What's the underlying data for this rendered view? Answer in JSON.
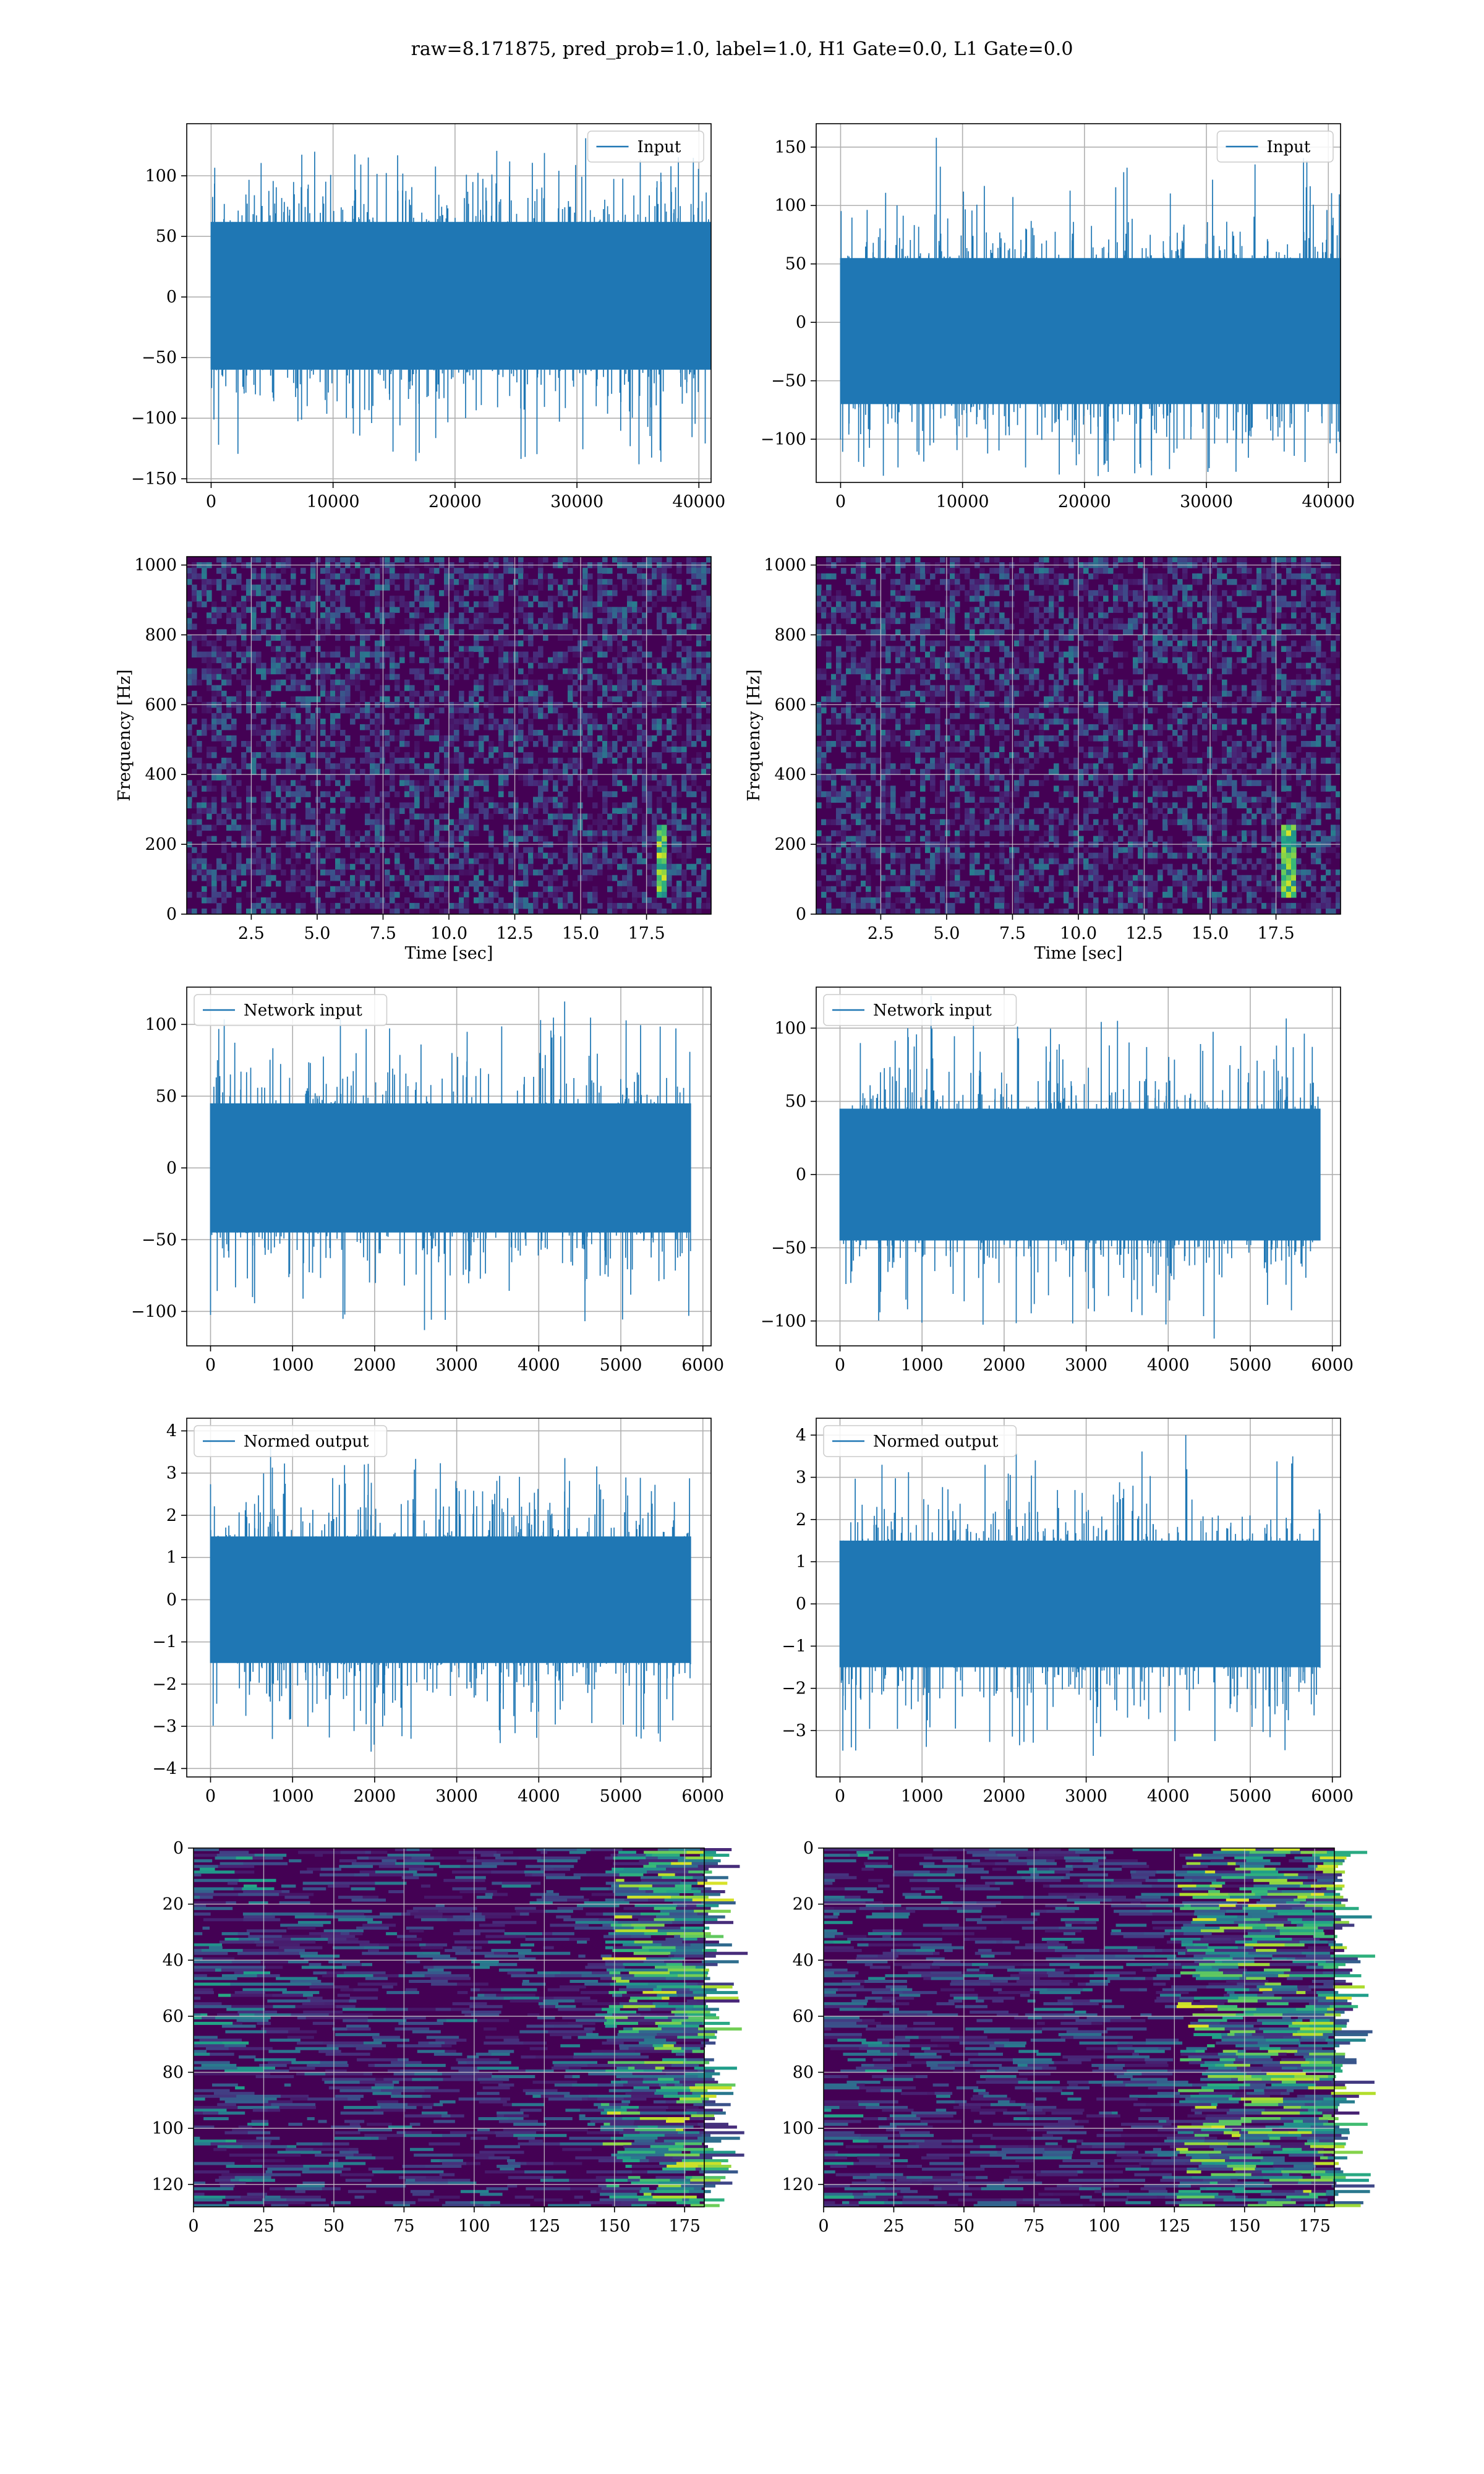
{
  "title": "raw=8.171875, pred_prob=1.0, label=1.0, H1 Gate=0.0, L1 Gate=0.0",
  "colors": {
    "line": "#1f77b4",
    "grid": "#b0b0b0",
    "viridis_low": "#440154",
    "viridis_mid": "#21918c",
    "viridis_high": "#fde725"
  },
  "chart_data": [
    {
      "id": "input-h1",
      "type": "line",
      "legend": "Input",
      "legend_loc": "upper right",
      "xlim": [
        -2000,
        41000
      ],
      "ylim": [
        -153,
        143
      ],
      "xticks": [
        0,
        10000,
        20000,
        30000,
        40000
      ],
      "yticks": [
        -150,
        -100,
        -50,
        0,
        50,
        100
      ],
      "x_range": [
        0,
        40960
      ],
      "band": [
        -60,
        62
      ],
      "peak_max": 131,
      "peak_min": -138,
      "grid": true
    },
    {
      "id": "input-l1",
      "type": "line",
      "legend": "Input",
      "legend_loc": "upper right",
      "xlim": [
        -2000,
        41000
      ],
      "ylim": [
        -137,
        170
      ],
      "xticks": [
        0,
        10000,
        20000,
        30000,
        40000
      ],
      "yticks": [
        -100,
        -50,
        0,
        50,
        100,
        150
      ],
      "x_range": [
        0,
        40960
      ],
      "band": [
        -70,
        55
      ],
      "peak_max": 158,
      "peak_min": -122,
      "grid": true
    },
    {
      "id": "spectrogram-h1",
      "type": "heatmap",
      "xlabel": "Time [sec]",
      "ylabel": "Frequency [Hz]",
      "xlim": [
        0.05,
        19.95
      ],
      "ylim": [
        0,
        1024
      ],
      "xticks": [
        2.5,
        5.0,
        7.5,
        10.0,
        12.5,
        15.0,
        17.5
      ],
      "yticks": [
        0,
        200,
        400,
        600,
        800,
        1000
      ],
      "colormap": "viridis",
      "bright_spot": {
        "t": 18.1,
        "f_low": 40,
        "f_high": 260
      },
      "grid": true
    },
    {
      "id": "spectrogram-l1",
      "type": "heatmap",
      "xlabel": "Time [sec]",
      "ylabel": "Frequency [Hz]",
      "xlim": [
        0.05,
        19.95
      ],
      "ylim": [
        0,
        1024
      ],
      "xticks": [
        2.5,
        5.0,
        7.5,
        10.0,
        12.5,
        15.0,
        17.5
      ],
      "yticks": [
        0,
        200,
        400,
        600,
        800,
        1000
      ],
      "colormap": "viridis",
      "bright_spot": {
        "t": 18.0,
        "f_low": 40,
        "f_high": 260
      },
      "grid": true
    },
    {
      "id": "network-input-h1",
      "type": "line",
      "legend": "Network input",
      "legend_loc": "upper left",
      "xlim": [
        -290,
        6100
      ],
      "ylim": [
        -124,
        126
      ],
      "xticks": [
        0,
        1000,
        2000,
        3000,
        4000,
        5000,
        6000
      ],
      "yticks": [
        -100,
        -50,
        0,
        50,
        100
      ],
      "x_range": [
        0,
        5850
      ],
      "band": [
        -45,
        45
      ],
      "peak_max": 116,
      "peak_min": -113,
      "grid": true
    },
    {
      "id": "network-input-l1",
      "type": "line",
      "legend": "Network input",
      "legend_loc": "upper left",
      "xlim": [
        -290,
        6100
      ],
      "ylim": [
        -117,
        128
      ],
      "xticks": [
        0,
        1000,
        2000,
        3000,
        4000,
        5000,
        6000
      ],
      "yticks": [
        -100,
        -50,
        0,
        50,
        100
      ],
      "x_range": [
        0,
        5850
      ],
      "band": [
        -45,
        45
      ],
      "peak_max": 122,
      "peak_min": -112,
      "grid": true
    },
    {
      "id": "normed-output-h1",
      "type": "line",
      "legend": "Normed output",
      "legend_loc": "upper left",
      "xlim": [
        -290,
        6100
      ],
      "ylim": [
        -4.2,
        4.3
      ],
      "xticks": [
        0,
        1000,
        2000,
        3000,
        4000,
        5000,
        6000
      ],
      "yticks": [
        -4,
        -3,
        -2,
        -1,
        0,
        1,
        2,
        3,
        4
      ],
      "x_range": [
        0,
        5850
      ],
      "band": [
        -1.5,
        1.5
      ],
      "peak_max": 3.7,
      "peak_min": -3.6,
      "grid": true
    },
    {
      "id": "normed-output-l1",
      "type": "line",
      "legend": "Normed output",
      "legend_loc": "upper left",
      "xlim": [
        -290,
        6100
      ],
      "ylim": [
        -4.1,
        4.4
      ],
      "xticks": [
        0,
        1000,
        2000,
        3000,
        4000,
        5000,
        6000
      ],
      "yticks": [
        -3,
        -2,
        -1,
        0,
        1,
        2,
        3,
        4
      ],
      "x_range": [
        0,
        5850
      ],
      "band": [
        -1.5,
        1.5
      ],
      "peak_max": 4.0,
      "peak_min": -3.6,
      "grid": true
    },
    {
      "id": "feature-map-h1",
      "type": "heatmap",
      "xlim": [
        0,
        182
      ],
      "ylim": [
        128,
        0
      ],
      "xticks": [
        0,
        25,
        50,
        75,
        100,
        125,
        150,
        175
      ],
      "yticks": [
        0,
        20,
        40,
        60,
        80,
        100,
        120
      ],
      "colormap": "viridis",
      "active_from": 145,
      "grid": true
    },
    {
      "id": "feature-map-l1",
      "type": "heatmap",
      "xlim": [
        0,
        182
      ],
      "ylim": [
        128,
        0
      ],
      "xticks": [
        0,
        25,
        50,
        75,
        100,
        125,
        150,
        175
      ],
      "yticks": [
        0,
        20,
        40,
        60,
        80,
        100,
        120
      ],
      "colormap": "viridis",
      "active_from": 125,
      "grid": true
    }
  ]
}
